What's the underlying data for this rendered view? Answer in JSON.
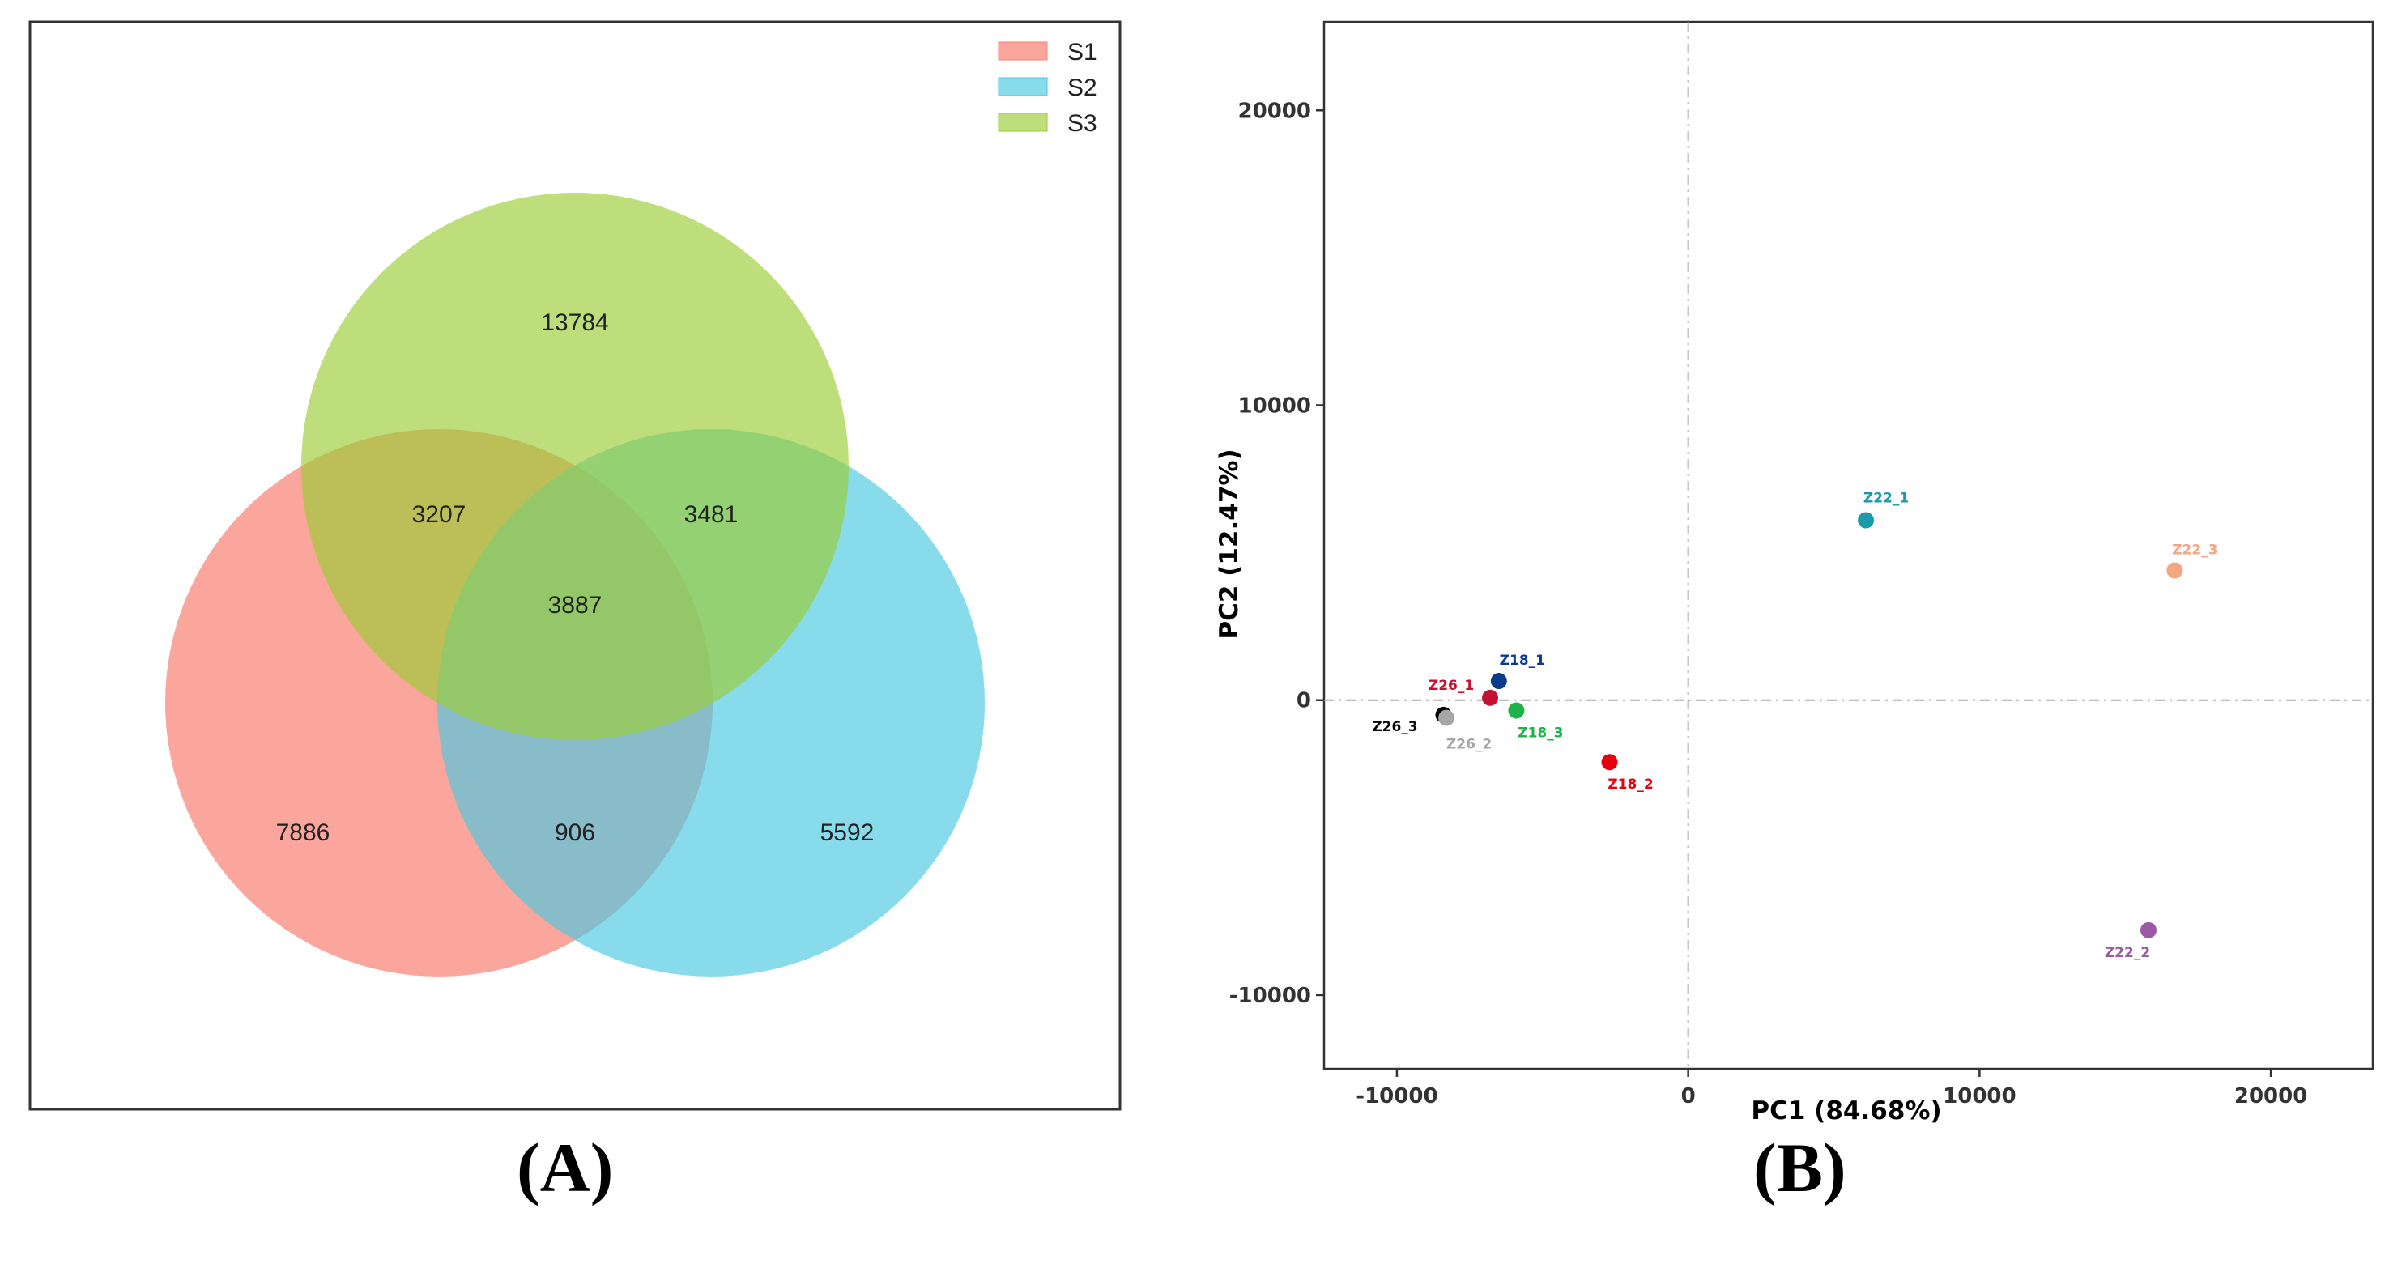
{
  "panels": {
    "a_label": "(A)",
    "b_label": "(B)"
  },
  "chart_data": [
    {
      "type": "venn",
      "sets": [
        {
          "name": "S1",
          "color": "#fa8072"
        },
        {
          "name": "S2",
          "color": "#48c8e0"
        },
        {
          "name": "S3",
          "color": "#9acd32"
        }
      ],
      "regions": {
        "S1_only": "7886",
        "S2_only": "5592",
        "S3_only": "13784",
        "S1_S3": "3207",
        "S2_S3": "3481",
        "S1_S2": "906",
        "S1_S2_S3": "3887"
      },
      "legend_position": "top-right"
    },
    {
      "type": "scatter",
      "xlabel": "PC1 (84.68%)",
      "ylabel": "PC2 (12.47%)",
      "xlim": [
        -12500,
        23500
      ],
      "ylim": [
        -12500,
        23000
      ],
      "xticks": [
        -10000,
        0,
        10000,
        20000
      ],
      "yticks": [
        -10000,
        0,
        10000,
        20000
      ],
      "grid": false,
      "reference_lines": {
        "x": 0,
        "y": 0
      },
      "points": [
        {
          "label": "Z22_1",
          "x": 6100,
          "y": 6100,
          "color": "#1b9aaa"
        },
        {
          "label": "Z22_3",
          "x": 16700,
          "y": 4400,
          "color": "#f4a582"
        },
        {
          "label": "Z18_1",
          "x": -6500,
          "y": 650,
          "color": "#0b3c8c"
        },
        {
          "label": "Z26_1",
          "x": -6800,
          "y": 80,
          "color": "#c4122f"
        },
        {
          "label": "Z26_3",
          "x": -8400,
          "y": -500,
          "color": "#000000"
        },
        {
          "label": "Z26_2",
          "x": -8300,
          "y": -600,
          "color": "#a6a6a6"
        },
        {
          "label": "Z18_3",
          "x": -5900,
          "y": -350,
          "color": "#1db34a"
        },
        {
          "label": "Z18_2",
          "x": -2700,
          "y": -2100,
          "color": "#e8000b"
        },
        {
          "label": "Z22_2",
          "x": 15800,
          "y": -7800,
          "color": "#9b59a6"
        }
      ]
    }
  ]
}
